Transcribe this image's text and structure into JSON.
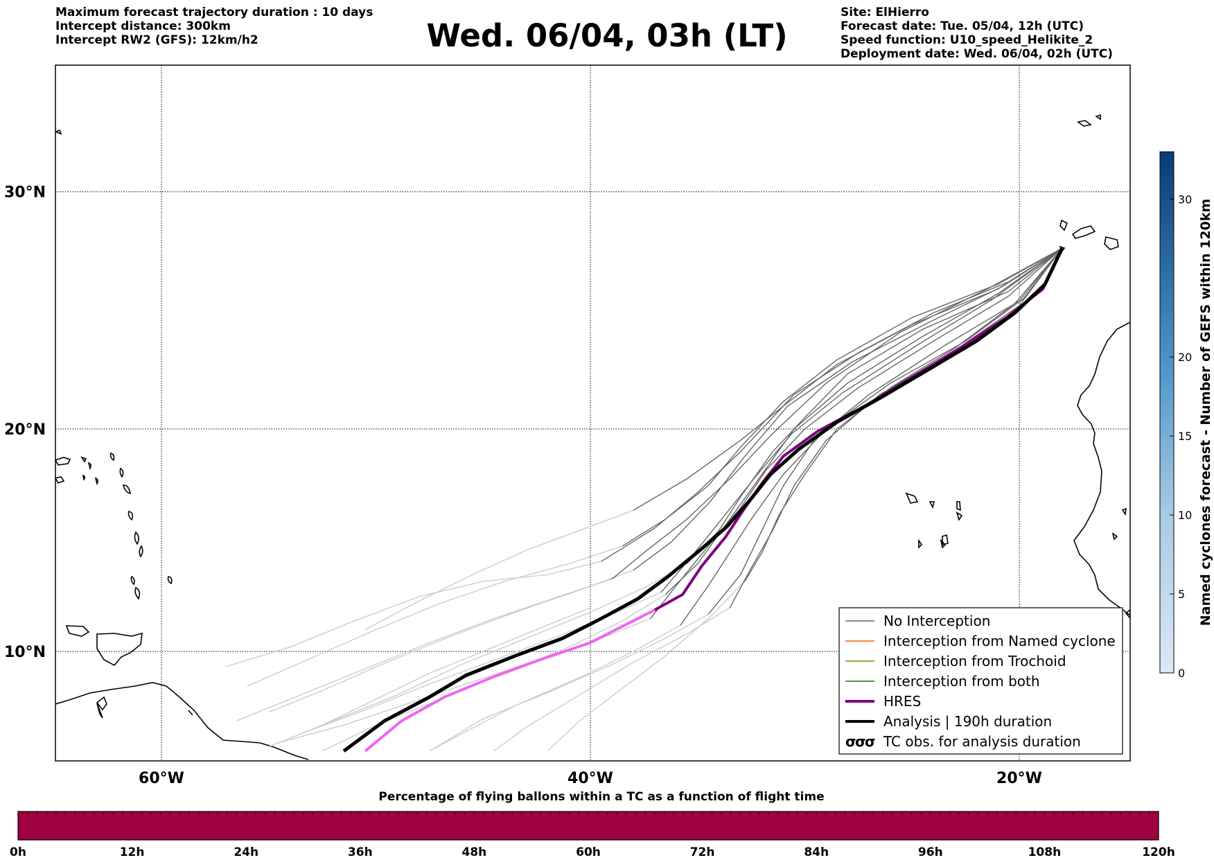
{
  "header": {
    "left_lines": [
      "Maximum forecast trajectory duration : 10 days",
      "Intercept distance: 300km",
      "Intercept RW2 (GFS):  12km/h2"
    ],
    "title": "Wed. 06/04, 03h (LT)",
    "right_lines": [
      "Site: ElHierro",
      "Forecast date: Tue. 05/04, 12h (UTC)",
      "Speed function: U10_speed_Helikite_2",
      "Deployment date: Wed. 06/04, 02h (UTC)"
    ]
  },
  "map": {
    "lat_labels": [
      {
        "lat": 30,
        "text": "30°N"
      },
      {
        "lat": 20,
        "text": "20°N"
      },
      {
        "lat": 10,
        "text": "10°N"
      }
    ],
    "lon_labels": [
      {
        "lon": -60,
        "text": "60°W"
      },
      {
        "lon": -40,
        "text": "40°W"
      },
      {
        "lon": -20,
        "text": "20°W"
      }
    ],
    "extent": {
      "lon_min": -65,
      "lon_max": -15,
      "lat_min": 5.4,
      "lat_max": 35
    },
    "site": {
      "name": "ElHierro",
      "lon": -18.0,
      "lat": 27.7
    },
    "colors": {
      "no_interception": "#666666",
      "light_trajectory": "#cccccc",
      "named_cyclone": "#ff5500",
      "trochoid": "#808000",
      "both": "#008000",
      "hres": "#800080",
      "hres_light": "#ee66ee",
      "analysis": "#000000"
    },
    "analysis_track": [
      [
        -18.0,
        27.7
      ],
      [
        -18.8,
        26.2
      ],
      [
        -20.2,
        25.0
      ],
      [
        -22.0,
        23.8
      ],
      [
        -24.2,
        22.6
      ],
      [
        -26.4,
        21.4
      ],
      [
        -28.5,
        20.3
      ],
      [
        -30.3,
        19.1
      ],
      [
        -31.6,
        18.0
      ],
      [
        -32.6,
        16.8
      ],
      [
        -33.6,
        15.7
      ],
      [
        -34.9,
        14.6
      ],
      [
        -36.4,
        13.4
      ],
      [
        -37.8,
        12.4
      ],
      [
        -39.5,
        11.5
      ],
      [
        -41.3,
        10.6
      ],
      [
        -43.5,
        9.8
      ],
      [
        -45.8,
        8.9
      ],
      [
        -47.5,
        7.9
      ],
      [
        -49.6,
        6.8
      ],
      [
        -51.5,
        5.4
      ]
    ],
    "hres_track": [
      [
        -18.0,
        27.7
      ],
      [
        -18.9,
        26.0
      ],
      [
        -20.6,
        24.8
      ],
      [
        -22.6,
        23.6
      ],
      [
        -24.9,
        22.3
      ],
      [
        -27.2,
        21.0
      ],
      [
        -29.4,
        19.9
      ],
      [
        -31.0,
        18.8
      ],
      [
        -32.0,
        17.6
      ],
      [
        -32.8,
        16.5
      ],
      [
        -33.7,
        15.2
      ],
      [
        -34.8,
        13.9
      ],
      [
        -35.7,
        12.6
      ],
      [
        -37.0,
        11.9
      ],
      [
        -38.4,
        11.2
      ],
      [
        -40.0,
        10.4
      ],
      [
        -42.4,
        9.6
      ],
      [
        -44.6,
        8.8
      ],
      [
        -46.8,
        7.9
      ],
      [
        -48.8,
        6.8
      ],
      [
        -50.5,
        5.4
      ]
    ],
    "gray_tracks": [
      [
        [
          -18.0,
          27.7
        ],
        [
          -20.5,
          26.3
        ],
        [
          -24.0,
          25.0
        ],
        [
          -27.5,
          23.3
        ],
        [
          -30.5,
          21.5
        ],
        [
          -33.0,
          19.0
        ],
        [
          -35.0,
          17.2
        ],
        [
          -37.0,
          15.6
        ],
        [
          -39.5,
          14.1
        ]
      ],
      [
        [
          -18.0,
          27.7
        ],
        [
          -21.0,
          26.0
        ],
        [
          -25.0,
          24.5
        ],
        [
          -28.5,
          22.8
        ],
        [
          -31.0,
          21.0
        ],
        [
          -33.0,
          19.5
        ],
        [
          -35.5,
          17.8
        ],
        [
          -38.0,
          16.4
        ]
      ],
      [
        [
          -18.0,
          27.7
        ],
        [
          -21.0,
          25.8
        ],
        [
          -24.5,
          24.0
        ],
        [
          -28.0,
          22.0
        ],
        [
          -30.5,
          20.0
        ],
        [
          -32.0,
          18.0
        ],
        [
          -33.5,
          16.0
        ],
        [
          -35.0,
          14.0
        ],
        [
          -36.5,
          12.6
        ]
      ],
      [
        [
          -18.0,
          27.7
        ],
        [
          -20.0,
          25.5
        ],
        [
          -23.5,
          23.6
        ],
        [
          -27.0,
          21.5
        ],
        [
          -29.5,
          19.6
        ],
        [
          -31.0,
          17.5
        ],
        [
          -32.0,
          15.5
        ],
        [
          -33.0,
          13.5
        ],
        [
          -34.5,
          11.7
        ]
      ],
      [
        [
          -18.0,
          27.7
        ],
        [
          -20.5,
          25.7
        ],
        [
          -24.0,
          23.8
        ],
        [
          -27.5,
          21.8
        ],
        [
          -30.0,
          20.0
        ],
        [
          -31.8,
          18.2
        ],
        [
          -33.0,
          16.5
        ],
        [
          -34.5,
          14.8
        ],
        [
          -36.0,
          13.0
        ],
        [
          -37.2,
          11.5
        ]
      ],
      [
        [
          -18.0,
          27.7
        ],
        [
          -20.0,
          25.3
        ],
        [
          -23.0,
          23.4
        ],
        [
          -26.5,
          21.5
        ],
        [
          -29.0,
          19.5
        ],
        [
          -30.5,
          17.5
        ],
        [
          -31.5,
          15.5
        ],
        [
          -32.5,
          13.8
        ],
        [
          -33.5,
          12.0
        ]
      ],
      [
        [
          -18.0,
          27.7
        ],
        [
          -21.5,
          26.0
        ],
        [
          -25.5,
          24.2
        ],
        [
          -29.0,
          22.0
        ],
        [
          -31.5,
          19.8
        ],
        [
          -33.5,
          17.8
        ],
        [
          -35.5,
          16.0
        ],
        [
          -37.5,
          14.5
        ],
        [
          -39.0,
          13.3
        ]
      ],
      [
        [
          -18.0,
          27.7
        ],
        [
          -20.5,
          25.9
        ],
        [
          -24.5,
          24.3
        ],
        [
          -28.0,
          22.4
        ],
        [
          -30.0,
          20.5
        ],
        [
          -31.5,
          19.0
        ],
        [
          -33.0,
          17.0
        ],
        [
          -34.0,
          15.5
        ],
        [
          -35.5,
          14.0
        ]
      ],
      [
        [
          -18.0,
          27.7
        ],
        [
          -19.8,
          25.6
        ],
        [
          -22.5,
          23.8
        ],
        [
          -26.0,
          22.0
        ],
        [
          -29.0,
          20.0
        ],
        [
          -31.0,
          18.0
        ],
        [
          -32.5,
          16.0
        ],
        [
          -33.5,
          14.5
        ],
        [
          -34.5,
          13.0
        ],
        [
          -35.8,
          11.2
        ]
      ],
      [
        [
          -18.0,
          27.7
        ],
        [
          -21.0,
          26.2
        ],
        [
          -25.0,
          24.8
        ],
        [
          -28.5,
          23.0
        ],
        [
          -31.0,
          21.2
        ],
        [
          -33.0,
          19.2
        ],
        [
          -34.5,
          17.5
        ],
        [
          -36.5,
          16.0
        ],
        [
          -38.5,
          14.8
        ]
      ],
      [
        [
          -18.0,
          27.7
        ],
        [
          -20.2,
          25.4
        ],
        [
          -23.0,
          23.5
        ],
        [
          -26.0,
          21.8
        ],
        [
          -28.5,
          20.0
        ],
        [
          -30.0,
          18.0
        ],
        [
          -31.2,
          16.2
        ],
        [
          -32.0,
          14.5
        ],
        [
          -32.8,
          13.2
        ]
      ],
      [
        [
          -18.0,
          27.7
        ],
        [
          -21.2,
          25.6
        ],
        [
          -24.8,
          23.6
        ],
        [
          -28.2,
          21.6
        ],
        [
          -30.6,
          19.8
        ],
        [
          -32.3,
          17.9
        ],
        [
          -33.8,
          16.1
        ],
        [
          -35.3,
          14.3
        ],
        [
          -36.7,
          12.7
        ]
      ],
      [
        [
          -18.0,
          27.7
        ],
        [
          -20.8,
          26.1
        ],
        [
          -24.2,
          24.6
        ],
        [
          -27.8,
          22.9
        ],
        [
          -30.8,
          21.0
        ],
        [
          -32.8,
          18.8
        ],
        [
          -34.4,
          16.8
        ],
        [
          -36.2,
          15.0
        ],
        [
          -38.0,
          13.7
        ]
      ]
    ],
    "light_tracks": [
      [
        [
          -39.5,
          14.1
        ],
        [
          -42.0,
          13.5
        ],
        [
          -45.0,
          13.2
        ],
        [
          -48.0,
          12.5
        ],
        [
          -51.0,
          11.4
        ],
        [
          -54.0,
          10.2
        ],
        [
          -57.0,
          9.3
        ]
      ],
      [
        [
          -38.0,
          16.4
        ],
        [
          -40.5,
          15.5
        ],
        [
          -43.0,
          14.6
        ],
        [
          -45.5,
          13.5
        ],
        [
          -48.0,
          12.3
        ],
        [
          -50.5,
          11.0
        ]
      ],
      [
        [
          -36.5,
          12.6
        ],
        [
          -38.5,
          11.4
        ],
        [
          -41.0,
          10.2
        ],
        [
          -44.0,
          9.0
        ],
        [
          -47.0,
          7.8
        ],
        [
          -50.0,
          6.6
        ],
        [
          -52.5,
          5.4
        ]
      ],
      [
        [
          -34.5,
          11.7
        ],
        [
          -36.5,
          10.6
        ],
        [
          -39.0,
          9.4
        ],
        [
          -42.0,
          8.1
        ],
        [
          -45.0,
          6.9
        ],
        [
          -47.5,
          5.4
        ]
      ],
      [
        [
          -37.2,
          11.5
        ],
        [
          -39.5,
          10.6
        ],
        [
          -42.5,
          9.6
        ],
        [
          -45.5,
          8.6
        ],
        [
          -48.5,
          7.6
        ],
        [
          -51.5,
          6.6
        ],
        [
          -54.5,
          5.8
        ]
      ],
      [
        [
          -33.5,
          12.0
        ],
        [
          -35.5,
          10.8
        ],
        [
          -38.0,
          9.5
        ],
        [
          -40.5,
          8.0
        ],
        [
          -43.0,
          6.5
        ],
        [
          -44.5,
          5.4
        ]
      ],
      [
        [
          -39.0,
          13.3
        ],
        [
          -41.5,
          12.5
        ],
        [
          -44.5,
          11.5
        ],
        [
          -47.5,
          10.4
        ],
        [
          -50.5,
          9.2
        ],
        [
          -53.5,
          8.0
        ],
        [
          -56.5,
          6.8
        ]
      ],
      [
        [
          -35.5,
          14.0
        ],
        [
          -37.5,
          12.9
        ],
        [
          -40.0,
          11.8
        ],
        [
          -43.0,
          10.6
        ],
        [
          -46.0,
          9.4
        ],
        [
          -49.0,
          8.0
        ],
        [
          -52.0,
          6.8
        ],
        [
          -54.0,
          6.0
        ]
      ],
      [
        [
          -35.8,
          11.2
        ],
        [
          -38.0,
          10.0
        ],
        [
          -40.5,
          8.8
        ],
        [
          -43.5,
          7.5
        ],
        [
          -46.0,
          6.2
        ],
        [
          -47.5,
          5.4
        ]
      ],
      [
        [
          -38.5,
          14.8
        ],
        [
          -41.0,
          14.0
        ],
        [
          -44.0,
          13.2
        ],
        [
          -47.0,
          12.2
        ],
        [
          -50.0,
          11.0
        ],
        [
          -53.0,
          9.7
        ],
        [
          -56.0,
          8.4
        ]
      ],
      [
        [
          -32.8,
          13.2
        ],
        [
          -34.5,
          11.5
        ],
        [
          -36.5,
          9.8
        ],
        [
          -38.5,
          8.3
        ],
        [
          -40.5,
          6.8
        ],
        [
          -42.0,
          5.4
        ]
      ],
      [
        [
          -36.7,
          12.7
        ],
        [
          -39.0,
          11.7
        ],
        [
          -41.5,
          10.7
        ],
        [
          -44.5,
          9.6
        ],
        [
          -47.5,
          8.5
        ],
        [
          -50.5,
          7.3
        ],
        [
          -53.5,
          6.2
        ]
      ],
      [
        [
          -38.0,
          13.7
        ],
        [
          -40.5,
          12.8
        ],
        [
          -43.5,
          11.8
        ],
        [
          -46.5,
          10.7
        ],
        [
          -49.5,
          9.5
        ],
        [
          -52.5,
          8.2
        ],
        [
          -55.0,
          7.2
        ]
      ],
      [
        [
          -40.0,
          12.0
        ],
        [
          -42.5,
          11.0
        ],
        [
          -45.0,
          10.0
        ],
        [
          -47.5,
          9.0
        ],
        [
          -50.0,
          7.8
        ],
        [
          -52.5,
          6.6
        ],
        [
          -55.0,
          5.6
        ]
      ]
    ]
  },
  "colorbar_right": {
    "title": "Named cyclones forecast - Number of GEFS within 120km",
    "min": 0,
    "max": 33,
    "ticks": [
      0,
      5,
      10,
      15,
      20,
      30
    ],
    "color_low": "#dbe8f6",
    "color_high": "#0a3a7a"
  },
  "legend": {
    "items": [
      {
        "label": "No Interception",
        "style": "thin",
        "color": "#666666"
      },
      {
        "label": "Interception from Named cyclone",
        "style": "thin",
        "color": "#ff5500"
      },
      {
        "label": "Interception from Trochoid",
        "style": "thin",
        "color": "#808000"
      },
      {
        "label": "Interception from both",
        "style": "thin",
        "color": "#008000"
      },
      {
        "label": "HRES",
        "style": "thick",
        "color": "#800080"
      },
      {
        "label": "Analysis | 190h duration",
        "style": "thick",
        "color": "#000000"
      },
      {
        "label": "TC obs. for analysis duration",
        "style": "symbol",
        "color": "#000000"
      }
    ]
  },
  "bottom_bar": {
    "title": "Percentage of flying ballons within a TC as a function of flight time",
    "color": "#9e0040",
    "ticks": [
      "0h",
      "12h",
      "24h",
      "36h",
      "48h",
      "60h",
      "72h",
      "84h",
      "96h",
      "108h",
      "120h"
    ]
  }
}
